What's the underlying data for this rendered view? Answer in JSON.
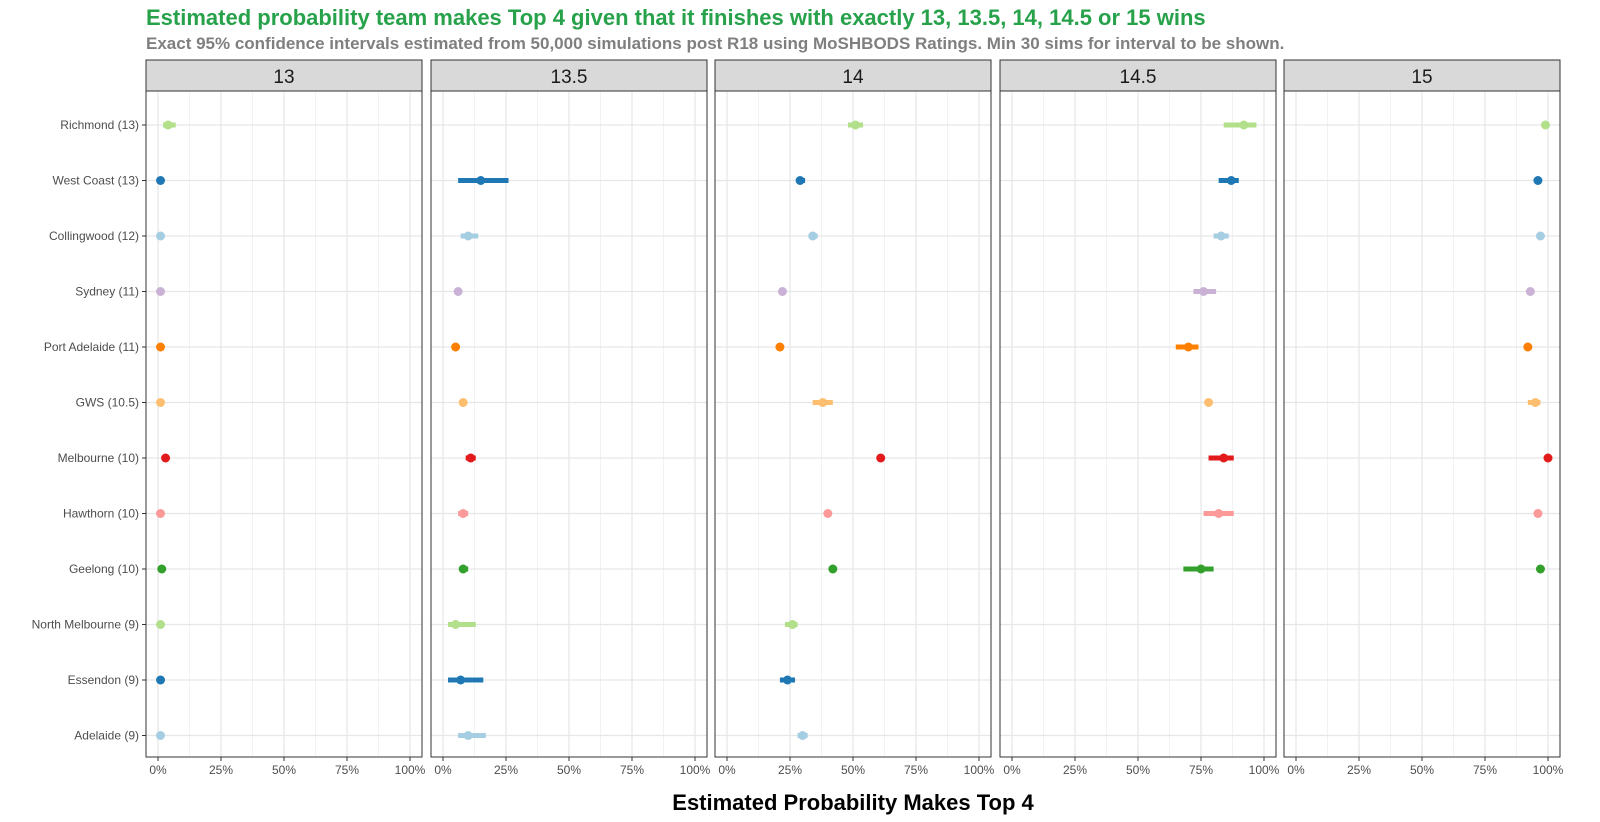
{
  "chart_data": {
    "type": "scatter",
    "title": "Estimated probability team makes Top 4 given that it finishes with exactly 13, 13.5, 14, 14.5 or 15 wins",
    "subtitle": "Exact 95% confidence intervals estimated from 50,000 simulations post R18 using MoSHBODS Ratings. Min 30 sims for interval to be shown.",
    "xlabel": "Estimated Probability Makes Top 4",
    "xlim": [
      0,
      1
    ],
    "xticks": [
      "0%",
      "25%",
      "50%",
      "75%",
      "100%"
    ],
    "grid": true,
    "facets": [
      "13",
      "13.5",
      "14",
      "14.5",
      "15"
    ],
    "teams": [
      "Richmond (13)",
      "West Coast (13)",
      "Collingwood (12)",
      "Sydney (11)",
      "Port Adelaide (11)",
      "GWS (10.5)",
      "Melbourne (10)",
      "Hawthorn (10)",
      "Geelong (10)",
      "North Melbourne (9)",
      "Essendon (9)",
      "Adelaide (9)"
    ],
    "colors": [
      "#b2df8a",
      "#1f78b4",
      "#a6cee3",
      "#cab2d6",
      "#ff7f00",
      "#fdbf6f",
      "#e31a1c",
      "#fb9a99",
      "#33a02c",
      "#b2df8a",
      "#1f78b4",
      "#a6cee3"
    ],
    "series": [
      {
        "facet": "13",
        "values": [
          [
            0.04,
            0.02,
            0.07
          ],
          [
            0.01,
            0.0,
            0.02
          ],
          [
            0.01,
            0.0,
            0.02
          ],
          [
            0.01,
            0.0,
            0.01
          ],
          [
            0.01,
            0.0,
            0.01
          ],
          [
            0.01,
            0.0,
            0.01
          ],
          [
            0.03,
            0.02,
            0.04
          ],
          [
            0.01,
            0.0,
            0.02
          ],
          [
            0.015,
            0.0,
            0.02
          ],
          [
            0.01,
            0.0,
            0.01
          ],
          [
            0.01,
            0.0,
            0.01
          ],
          [
            0.01,
            0.0,
            0.01
          ]
        ]
      },
      {
        "facet": "13.5",
        "values": [
          null,
          [
            0.15,
            0.06,
            0.26
          ],
          [
            0.1,
            0.07,
            0.14
          ],
          [
            0.06,
            0.05,
            0.07
          ],
          [
            0.05,
            0.04,
            0.06
          ],
          [
            0.08,
            0.07,
            0.09
          ],
          [
            0.11,
            0.09,
            0.13
          ],
          [
            0.08,
            0.06,
            0.1
          ],
          [
            0.08,
            0.07,
            0.1
          ],
          [
            0.05,
            0.02,
            0.13
          ],
          [
            0.07,
            0.02,
            0.16
          ],
          [
            0.1,
            0.06,
            0.17
          ]
        ]
      },
      {
        "facet": "14",
        "values": [
          [
            0.51,
            0.48,
            0.54
          ],
          [
            0.29,
            0.28,
            0.31
          ],
          [
            0.34,
            0.33,
            0.36
          ],
          [
            0.22,
            0.21,
            0.23
          ],
          [
            0.21,
            0.2,
            0.22
          ],
          [
            0.38,
            0.34,
            0.42
          ],
          [
            0.61,
            0.6,
            0.62
          ],
          [
            0.4,
            0.39,
            0.41
          ],
          [
            0.42,
            0.41,
            0.43
          ],
          [
            0.26,
            0.23,
            0.28
          ],
          [
            0.24,
            0.21,
            0.27
          ],
          [
            0.3,
            0.28,
            0.32
          ]
        ]
      },
      {
        "facet": "14.5",
        "values": [
          [
            0.92,
            0.84,
            0.97
          ],
          [
            0.87,
            0.82,
            0.9
          ],
          [
            0.83,
            0.8,
            0.86
          ],
          [
            0.76,
            0.72,
            0.81
          ],
          [
            0.7,
            0.65,
            0.74
          ],
          [
            0.78,
            0.77,
            0.79
          ],
          [
            0.84,
            0.78,
            0.88
          ],
          [
            0.82,
            0.76,
            0.88
          ],
          [
            0.75,
            0.68,
            0.8
          ],
          null,
          null,
          null
        ]
      },
      {
        "facet": "15",
        "values": [
          [
            0.99,
            0.98,
            1.0
          ],
          [
            0.96,
            0.95,
            0.97
          ],
          [
            0.97,
            0.96,
            0.98
          ],
          [
            0.93,
            0.92,
            0.94
          ],
          [
            0.92,
            0.91,
            0.93
          ],
          [
            0.95,
            0.92,
            0.97
          ],
          [
            1.0,
            0.99,
            1.0
          ],
          [
            0.96,
            0.95,
            0.97
          ],
          [
            0.97,
            0.96,
            0.98
          ],
          null,
          null,
          null
        ]
      }
    ]
  }
}
